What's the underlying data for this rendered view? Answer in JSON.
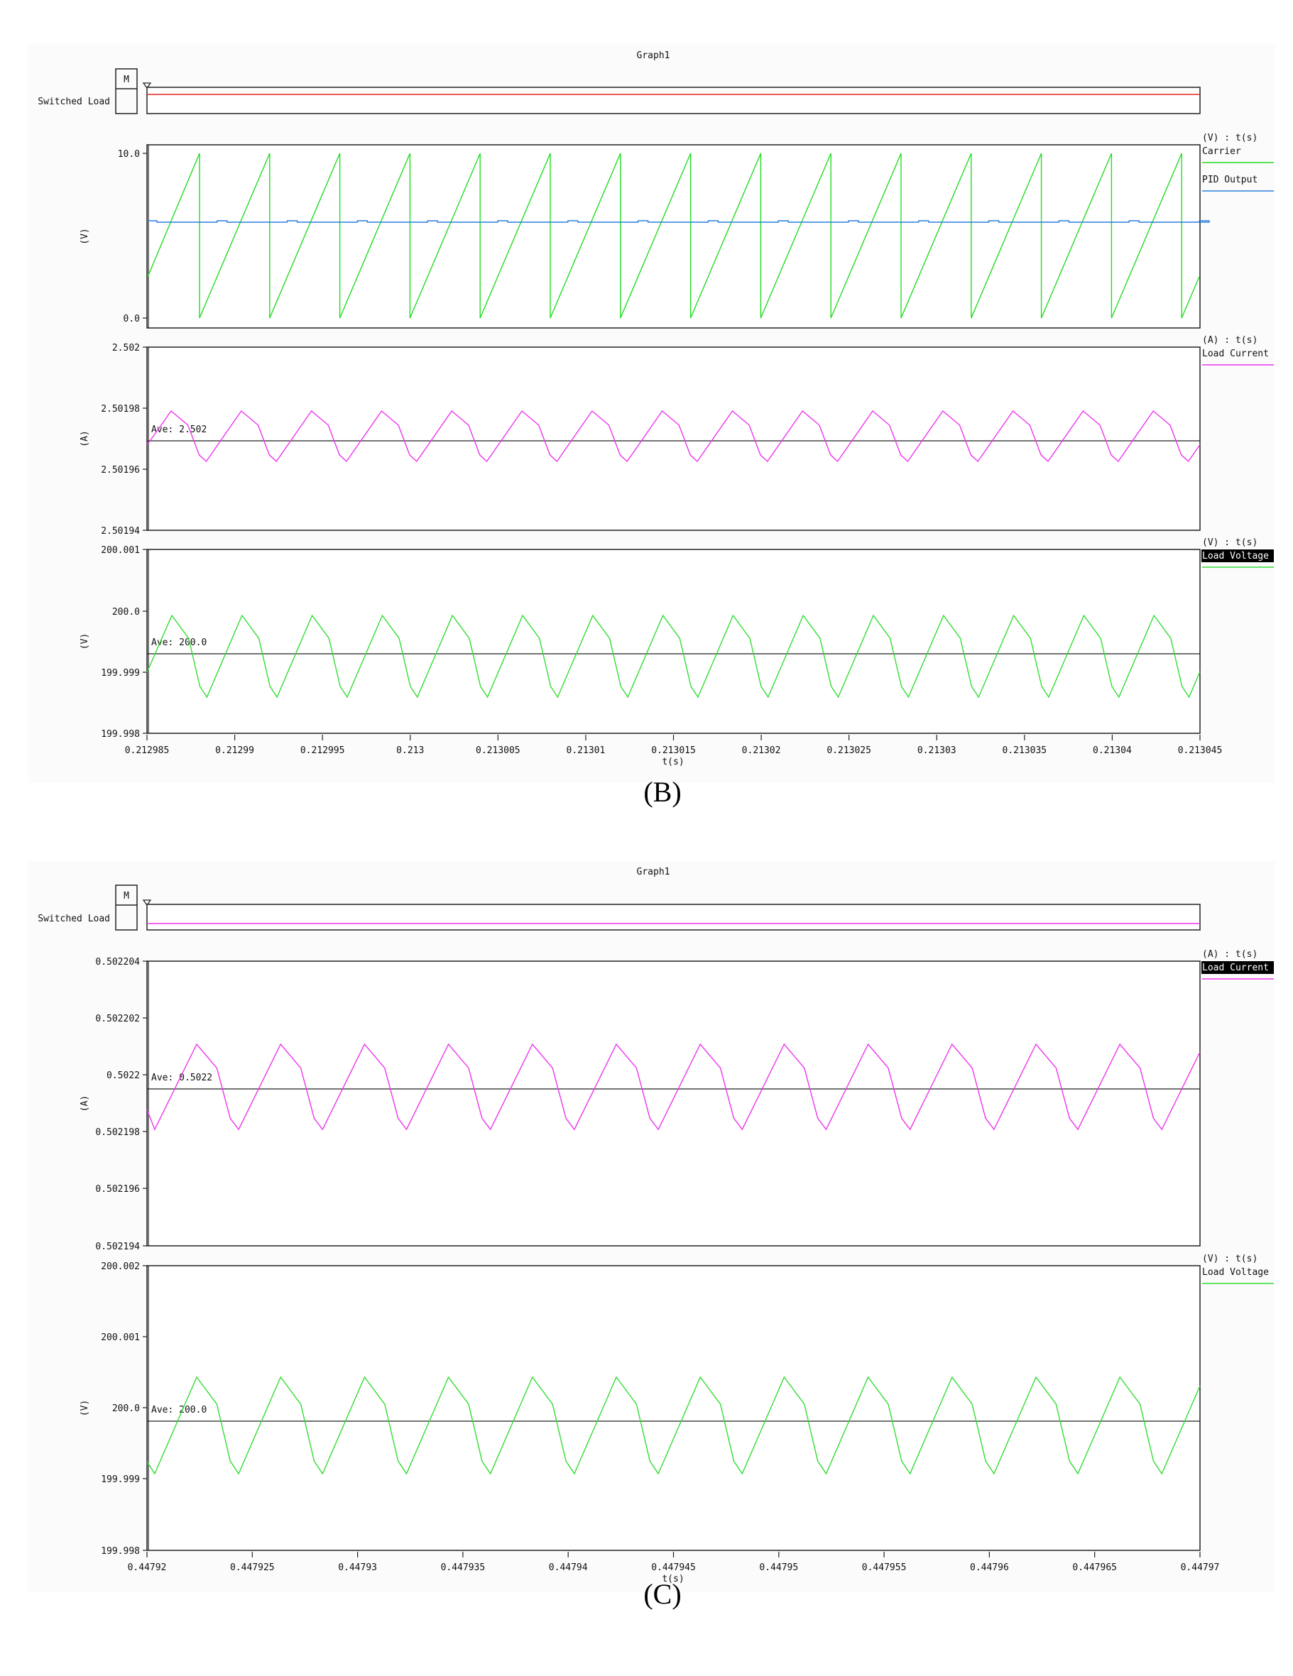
{
  "figures": [
    {
      "id": "B",
      "caption": "(B)",
      "title": "Graph1",
      "switched_load": {
        "label": "Switched Load",
        "marker": "M",
        "line_color": "#e8231f"
      },
      "x_axis": {
        "label": "t(s)",
        "min": 0.212985,
        "max": 0.213045,
        "ticks": [
          "0.212985",
          "0.21299",
          "0.212995",
          "0.213",
          "0.213005",
          "0.21301",
          "0.213015",
          "0.21302",
          "0.213025",
          "0.21303",
          "0.213035",
          "0.21304",
          "0.213045"
        ]
      },
      "panels": [
        {
          "units": "(V) : t(s)",
          "ylabel": "(V)",
          "ticks": [
            "10.0",
            "0.0"
          ],
          "tick_values": [
            10,
            0
          ],
          "ylim": [
            -0.5,
            10.6
          ],
          "legend": [
            {
              "label": "Carrier",
              "color": "#22dd22",
              "highlighted": false
            },
            {
              "label": "PID Output",
              "color": "#2a7fdc",
              "highlighted": false
            }
          ]
        },
        {
          "units": "(A) : t(s)",
          "ylabel": "(A)",
          "ticks": [
            "2.502",
            "2.50198",
            "2.50196",
            "2.50194"
          ],
          "average_label": "Ave: 2.502",
          "legend": [
            {
              "label": "Load Current",
              "color": "#ee33ee",
              "highlighted": false
            }
          ]
        },
        {
          "units": "(V) : t(s)",
          "ylabel": "(V)",
          "ticks": [
            "200.001",
            "200.0",
            "199.999",
            "199.998"
          ],
          "average_label": "Ave: 200.0",
          "legend": [
            {
              "label": "Load Voltage",
              "color": "#33dd33",
              "highlighted": true
            }
          ]
        }
      ]
    },
    {
      "id": "C",
      "caption": "(C)",
      "title": "Graph1",
      "switched_load": {
        "label": "Switched Load",
        "marker": "M",
        "line_color": "#ee33ee"
      },
      "x_axis": {
        "label": "t(s)",
        "min": 0.44792,
        "max": 0.44797,
        "ticks": [
          "0.44792",
          "0.447925",
          "0.44793",
          "0.447935",
          "0.44794",
          "0.447945",
          "0.44795",
          "0.447955",
          "0.44796",
          "0.447965",
          "0.44797"
        ]
      },
      "panels": [
        {
          "units": "(A) : t(s)",
          "ylabel": "(A)",
          "ticks": [
            "0.502204",
            "0.502202",
            "0.5022",
            "0.502198",
            "0.502196",
            "0.502194"
          ],
          "average_label": "Ave: 0.5022",
          "legend": [
            {
              "label": "Load Current",
              "color": "#ee33ee",
              "highlighted": true
            }
          ]
        },
        {
          "units": "(V) : t(s)",
          "ylabel": "(V)",
          "ticks": [
            "200.002",
            "200.001",
            "200.0",
            "199.999",
            "199.998"
          ],
          "average_label": "Ave: 200.0",
          "legend": [
            {
              "label": "Load Voltage",
              "color": "#33dd33",
              "highlighted": false
            }
          ]
        }
      ]
    }
  ],
  "chart_data": [
    {
      "type": "line",
      "title": "Graph1 (B) - Carrier / PID Output",
      "xlabel": "t(s)",
      "ylabel": "(V)",
      "xlim": [
        0.212985,
        0.213045
      ],
      "ylim": [
        0.0,
        10.0
      ],
      "series": [
        {
          "name": "Carrier",
          "shape": "sawtooth",
          "min": 0.0,
          "max": 10.0,
          "period_s": 4e-06,
          "start_value": 2.5
        },
        {
          "name": "PID Output",
          "shape": "constant",
          "value": 5.85
        }
      ],
      "legend_position": "right",
      "grid": false
    },
    {
      "type": "line",
      "title": "Graph1 (B) - Load Current",
      "xlabel": "t(s)",
      "ylabel": "(A)",
      "xlim": [
        0.212985,
        0.213045
      ],
      "ylim": [
        2.50194,
        2.502
      ],
      "series": [
        {
          "name": "Load Current",
          "shape": "ripple",
          "max": 2.501979,
          "min": 2.501963,
          "period_s": 4e-06,
          "average": 2.501971
        }
      ],
      "annotations": [
        "Ave: 2.502"
      ],
      "legend_position": "right",
      "grid": false
    },
    {
      "type": "line",
      "title": "Graph1 (B) - Load Voltage",
      "xlabel": "t(s)",
      "ylabel": "(V)",
      "xlim": [
        0.212985,
        0.213045
      ],
      "ylim": [
        199.998,
        200.001
      ],
      "series": [
        {
          "name": "Load Voltage",
          "shape": "ripple",
          "max": 199.99993,
          "min": 199.9986,
          "period_s": 4e-06,
          "average": 199.9993
        }
      ],
      "annotations": [
        "Ave: 200.0"
      ],
      "legend_position": "right",
      "grid": false
    },
    {
      "type": "line",
      "title": "Graph1 (C) - Load Current",
      "xlabel": "t(s)",
      "ylabel": "(A)",
      "xlim": [
        0.44792,
        0.44797
      ],
      "ylim": [
        0.502194,
        0.502204
      ],
      "series": [
        {
          "name": "Load Current",
          "shape": "ripple",
          "max": 0.5022011,
          "min": 0.5021978,
          "period_s": 3.97e-06,
          "average": 0.5021995
        }
      ],
      "annotations": [
        "Ave: 0.5022"
      ],
      "legend_position": "right",
      "grid": false
    },
    {
      "type": "line",
      "title": "Graph1 (C) - Load Voltage",
      "xlabel": "t(s)",
      "ylabel": "(V)",
      "xlim": [
        0.44792,
        0.44797
      ],
      "ylim": [
        199.998,
        200.002
      ],
      "series": [
        {
          "name": "Load Voltage",
          "shape": "ripple",
          "max": 200.00043,
          "min": 199.99907,
          "period_s": 3.97e-06,
          "average": 199.99981
        }
      ],
      "annotations": [
        "Ave: 200.0"
      ],
      "legend_position": "right",
      "grid": false
    }
  ]
}
